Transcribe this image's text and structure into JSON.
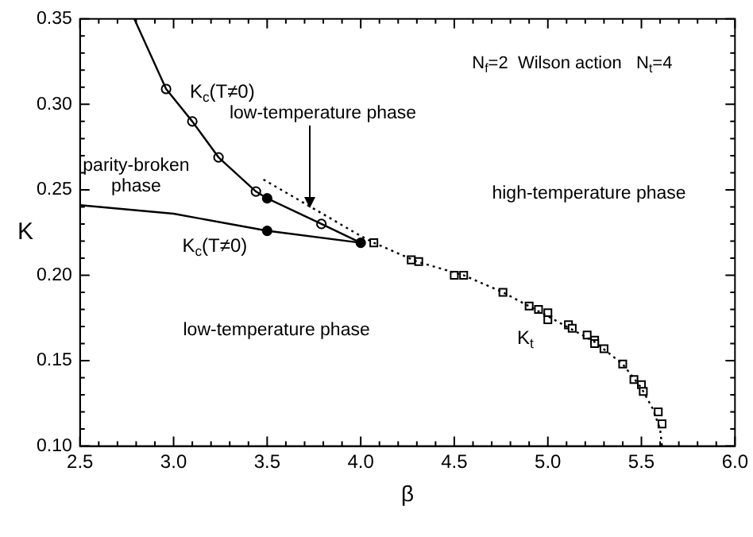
{
  "chart_data": {
    "type": "line",
    "xlabel": "β",
    "ylabel": "K",
    "xlim": [
      2.5,
      6.0
    ],
    "ylim": [
      0.1,
      0.35
    ],
    "xticks": [
      {
        "value": 2.5,
        "label": "2.5"
      },
      {
        "value": 2.6,
        "label": null
      },
      {
        "value": 2.7,
        "label": null
      },
      {
        "value": 2.8,
        "label": null
      },
      {
        "value": 2.9,
        "label": null
      },
      {
        "value": 3.0,
        "label": "3.0"
      },
      {
        "value": 3.1,
        "label": null
      },
      {
        "value": 3.2,
        "label": null
      },
      {
        "value": 3.3,
        "label": null
      },
      {
        "value": 3.4,
        "label": null
      },
      {
        "value": 3.5,
        "label": "3.5"
      },
      {
        "value": 3.6,
        "label": null
      },
      {
        "value": 3.7,
        "label": null
      },
      {
        "value": 3.8,
        "label": null
      },
      {
        "value": 3.9,
        "label": null
      },
      {
        "value": 4.0,
        "label": "4.0"
      },
      {
        "value": 4.1,
        "label": null
      },
      {
        "value": 4.2,
        "label": null
      },
      {
        "value": 4.3,
        "label": null
      },
      {
        "value": 4.4,
        "label": null
      },
      {
        "value": 4.5,
        "label": "4.5"
      },
      {
        "value": 4.6,
        "label": null
      },
      {
        "value": 4.7,
        "label": null
      },
      {
        "value": 4.8,
        "label": null
      },
      {
        "value": 4.9,
        "label": null
      },
      {
        "value": 5.0,
        "label": "5.0"
      },
      {
        "value": 5.1,
        "label": null
      },
      {
        "value": 5.2,
        "label": null
      },
      {
        "value": 5.3,
        "label": null
      },
      {
        "value": 5.4,
        "label": null
      },
      {
        "value": 5.5,
        "label": "5.5"
      },
      {
        "value": 5.6,
        "label": null
      },
      {
        "value": 5.7,
        "label": null
      },
      {
        "value": 5.8,
        "label": null
      },
      {
        "value": 5.9,
        "label": null
      },
      {
        "value": 6.0,
        "label": "6.0"
      }
    ],
    "yticks": [
      {
        "value": 0.1,
        "label": "0.10"
      },
      {
        "value": 0.11,
        "label": null
      },
      {
        "value": 0.12,
        "label": null
      },
      {
        "value": 0.13,
        "label": null
      },
      {
        "value": 0.14,
        "label": null
      },
      {
        "value": 0.15,
        "label": "0.15"
      },
      {
        "value": 0.16,
        "label": null
      },
      {
        "value": 0.17,
        "label": null
      },
      {
        "value": 0.18,
        "label": null
      },
      {
        "value": 0.19,
        "label": null
      },
      {
        "value": 0.2,
        "label": "0.20"
      },
      {
        "value": 0.21,
        "label": null
      },
      {
        "value": 0.22,
        "label": null
      },
      {
        "value": 0.23,
        "label": null
      },
      {
        "value": 0.24,
        "label": null
      },
      {
        "value": 0.25,
        "label": "0.25"
      },
      {
        "value": 0.26,
        "label": null
      },
      {
        "value": 0.27,
        "label": null
      },
      {
        "value": 0.28,
        "label": null
      },
      {
        "value": 0.29,
        "label": null
      },
      {
        "value": 0.3,
        "label": "0.30"
      },
      {
        "value": 0.31,
        "label": null
      },
      {
        "value": 0.32,
        "label": null
      },
      {
        "value": 0.33,
        "label": null
      },
      {
        "value": 0.34,
        "label": null
      },
      {
        "value": 0.35,
        "label": "0.35"
      }
    ],
    "grid": false,
    "legend": false,
    "series": [
      {
        "color": "#000000",
        "marker": "none",
        "line_style": "solid",
        "x": [
          2.79,
          2.96,
          3.1,
          3.24,
          3.44,
          3.5,
          3.79,
          4.0
        ],
        "values": [
          0.35,
          0.309,
          0.29,
          0.269,
          0.249,
          0.245,
          0.23,
          0.219
        ]
      },
      {
        "color": "#000000",
        "marker": "none",
        "line_style": "solid",
        "x": [
          2.5,
          3.0,
          3.5,
          4.0
        ],
        "values": [
          0.241,
          0.236,
          0.226,
          0.219
        ]
      },
      {
        "color": "#000000",
        "marker": "none",
        "line_style": "dotted",
        "x": [
          3.48,
          4.0,
          4.07,
          4.3,
          4.55,
          4.76,
          5.0,
          5.25,
          5.4,
          5.5,
          5.56,
          5.6,
          5.61
        ],
        "values": [
          0.256,
          0.223,
          0.219,
          0.208,
          0.2,
          0.19,
          0.176,
          0.161,
          0.148,
          0.134,
          0.122,
          0.11,
          0.1
        ]
      },
      {
        "type": "scatter",
        "color": "#ffffff",
        "marker": "circle",
        "x": [
          2.96,
          3.1,
          3.24,
          3.44,
          3.79
        ],
        "values": [
          0.309,
          0.29,
          0.269,
          0.249,
          0.23
        ]
      },
      {
        "type": "scatter",
        "color": "#000000",
        "marker": "circle",
        "x": [
          3.5,
          3.5,
          4.0
        ],
        "values": [
          0.245,
          0.226,
          0.219
        ]
      },
      {
        "type": "scatter",
        "color": "#ffffff",
        "marker": "square",
        "x": [
          4.07,
          4.27,
          4.31,
          4.5,
          4.55,
          4.76,
          4.9,
          4.95,
          5.0,
          5.0,
          5.11,
          5.13,
          5.21,
          5.25,
          5.25,
          5.3,
          5.4,
          5.46,
          5.5,
          5.51,
          5.59,
          5.61
        ],
        "values": [
          0.219,
          0.209,
          0.208,
          0.2,
          0.2,
          0.19,
          0.182,
          0.18,
          0.178,
          0.174,
          0.171,
          0.169,
          0.165,
          0.162,
          0.16,
          0.157,
          0.148,
          0.139,
          0.136,
          0.132,
          0.12,
          0.113
        ]
      }
    ],
    "annotations": [
      "K$_{c}$(T≠0)",
      "K$_{c}$(T≠0)",
      "K$_{t}$",
      "N$_{f}$=2  Wilson action   N$_{t}$=4",
      "parity-broken\nphase",
      {
        "text": "low-temperature phase",
        "x": 3.73,
        "y": 0.239
      },
      "high-temperature phase",
      "low-temperature phase"
    ]
  }
}
